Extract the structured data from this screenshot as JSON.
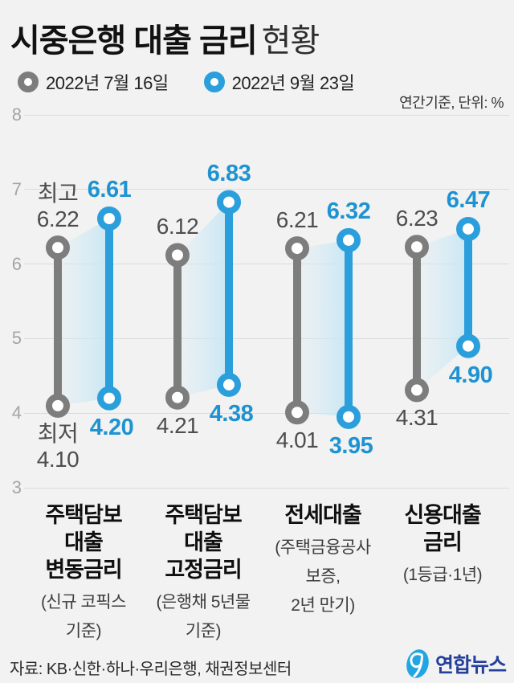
{
  "title": {
    "main": "시중은행 대출 금리",
    "sub": "현황"
  },
  "legend": [
    {
      "label": "2022년 7월 16일",
      "color": "#7d7d7d"
    },
    {
      "label": "2022년 9월 23일",
      "color": "#2b9fdc"
    }
  ],
  "note": "연간기준, 단위: %",
  "source": "자료: KB·신한·하나·우리은행, 채권정보센터",
  "logo_text": "연합뉴스",
  "colors": {
    "gray": "#7d7d7d",
    "blue": "#2b9fdc",
    "value_gray": "#4d4d4d",
    "value_blue": "#1e93d2",
    "band_from": "rgba(214,236,246,0.18)",
    "band_to": "rgba(198,230,245,0.95)",
    "grid": "#dadbda",
    "background": "#f1f2f1"
  },
  "chart_data": {
    "type": "dumbbell-range",
    "ylim": [
      3,
      8
    ],
    "yticks": [
      8,
      7,
      6,
      5,
      4,
      3
    ],
    "unit": "%",
    "annotations": {
      "high": "최고",
      "low": "최저"
    },
    "series": [
      {
        "name": "2022년 7월 16일",
        "role": "gray",
        "points": [
          {
            "high": 6.22,
            "low": 4.1
          },
          {
            "high": 6.12,
            "low": 4.21
          },
          {
            "high": 6.21,
            "low": 4.01
          },
          {
            "high": 6.23,
            "low": 4.31
          }
        ]
      },
      {
        "name": "2022년 9월 23일",
        "role": "blue",
        "points": [
          {
            "high": 6.61,
            "low": 4.2
          },
          {
            "high": 6.83,
            "low": 4.38
          },
          {
            "high": 6.32,
            "low": 3.95
          },
          {
            "high": 6.47,
            "low": 4.9
          }
        ]
      }
    ],
    "categories": [
      {
        "bold": [
          "주택담보",
          "대출",
          "변동금리"
        ],
        "sub": [
          "(신규 코픽스",
          "기준)"
        ]
      },
      {
        "bold": [
          "주택담보",
          "대출",
          "고정금리"
        ],
        "sub": [
          "(은행채 5년물",
          "기준)"
        ]
      },
      {
        "bold": [
          "전세대출"
        ],
        "sub": [
          "(주택금융공사",
          "보증,",
          "2년 만기)"
        ]
      },
      {
        "bold": [
          "신용대출",
          "금리"
        ],
        "sub": [
          "(1등급·1년)"
        ]
      }
    ]
  }
}
